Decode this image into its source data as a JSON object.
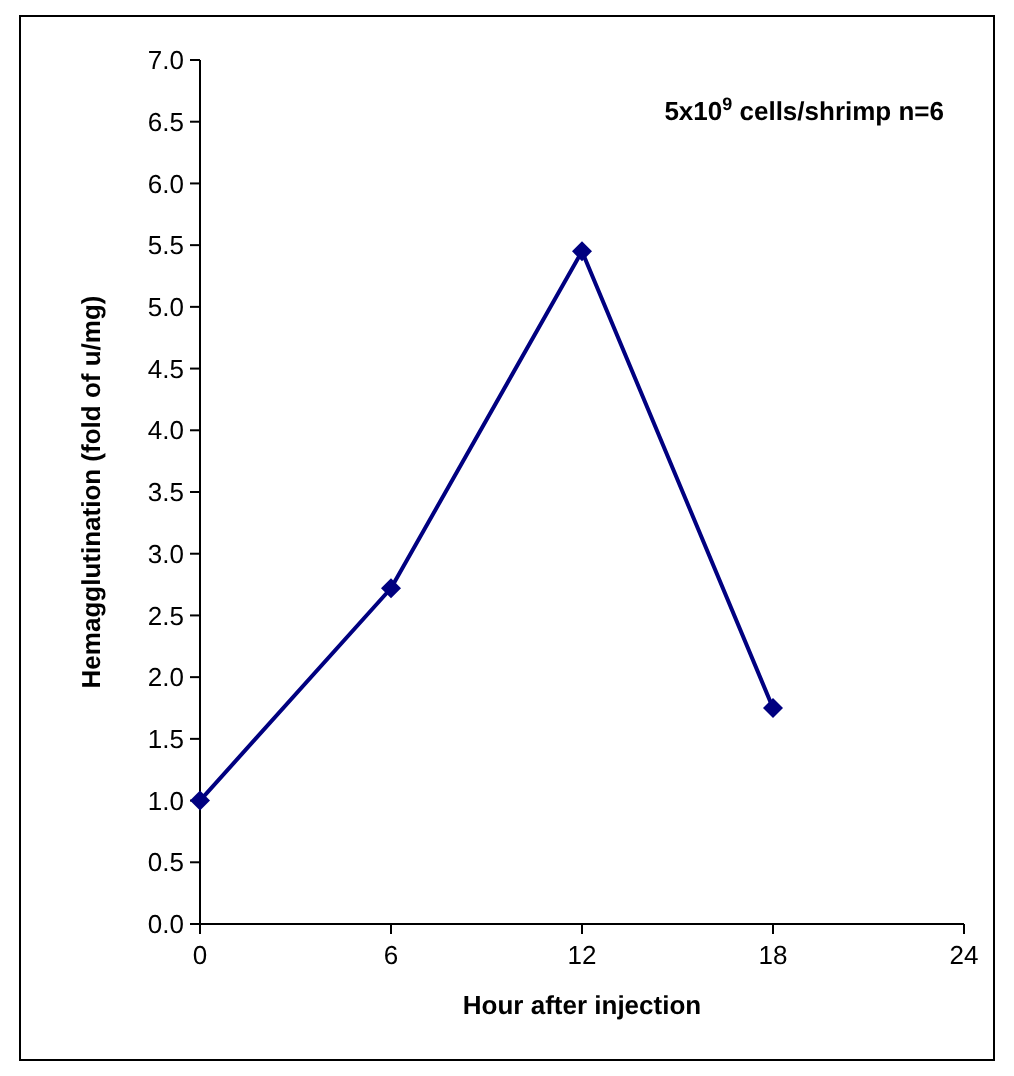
{
  "chart_data": {
    "type": "line",
    "xlabel": "Hour after injection",
    "ylabel": "Hemagglutination (fold of u/mg)",
    "annotations": [
      "5x10$^{9}$ cells/shrimp   n=6"
    ],
    "x": [
      0,
      6,
      12,
      18
    ],
    "series": [
      {
        "color": "#000080",
        "values": [
          1.0,
          2.72,
          5.45,
          1.75
        ]
      }
    ],
    "xlim": [
      0,
      24
    ],
    "xticks": [
      0,
      6,
      12,
      18,
      24
    ],
    "ylim": [
      0,
      7
    ],
    "yticks": [
      {
        "value": 0,
        "label": "0.0"
      },
      {
        "value": 0.5,
        "label": "0.5"
      },
      {
        "value": 1,
        "label": "1.0"
      },
      {
        "value": 1.5,
        "label": "1.5"
      },
      {
        "value": 2,
        "label": "2.0"
      },
      {
        "value": 2.5,
        "label": "2.5"
      },
      {
        "value": 3,
        "label": "3.0"
      },
      {
        "value": 3.5,
        "label": "3.5"
      },
      {
        "value": 4,
        "label": "4.0"
      },
      {
        "value": 4.5,
        "label": "4.5"
      },
      {
        "value": 5,
        "label": "5.0"
      },
      {
        "value": 5.5,
        "label": "5.5"
      },
      {
        "value": 6,
        "label": "6.0"
      },
      {
        "value": 6.5,
        "label": "6.5"
      },
      {
        "value": 7,
        "label": "7.0"
      }
    ],
    "grid": false,
    "marker": "diamond",
    "line_style": "solid"
  }
}
